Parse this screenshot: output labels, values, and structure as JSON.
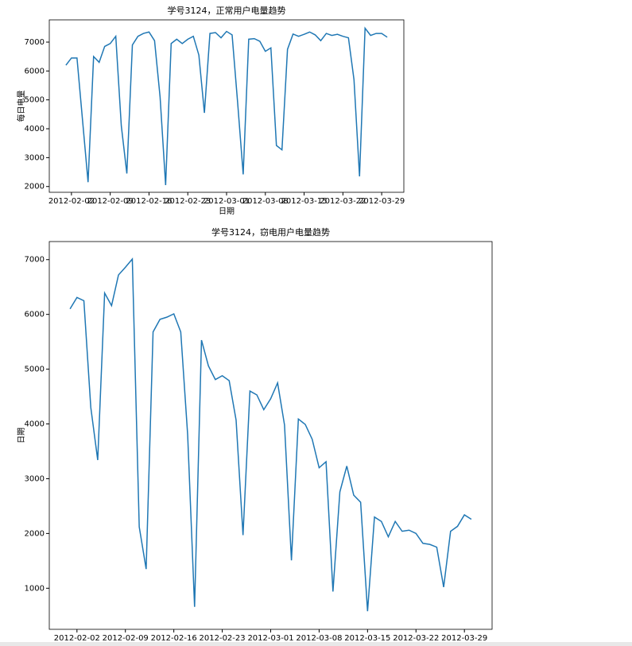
{
  "chart_data": [
    {
      "type": "line",
      "title": "学号3124，正常用户电量趋势",
      "x_label": "日期",
      "y_label": "每日电量",
      "x": [
        "2012-02-01",
        "2012-02-02",
        "2012-02-03",
        "2012-02-04",
        "2012-02-05",
        "2012-02-06",
        "2012-02-07",
        "2012-02-08",
        "2012-02-09",
        "2012-02-10",
        "2012-02-11",
        "2012-02-12",
        "2012-02-13",
        "2012-02-14",
        "2012-02-15",
        "2012-02-16",
        "2012-02-17",
        "2012-02-18",
        "2012-02-19",
        "2012-02-20",
        "2012-02-21",
        "2012-02-22",
        "2012-02-23",
        "2012-02-24",
        "2012-02-25",
        "2012-02-26",
        "2012-02-27",
        "2012-02-28",
        "2012-02-29",
        "2012-03-01",
        "2012-03-02",
        "2012-03-03",
        "2012-03-04",
        "2012-03-05",
        "2012-03-06",
        "2012-03-07",
        "2012-03-08",
        "2012-03-09",
        "2012-03-10",
        "2012-03-11",
        "2012-03-12",
        "2012-03-13",
        "2012-03-14",
        "2012-03-15",
        "2012-03-16",
        "2012-03-17",
        "2012-03-18",
        "2012-03-19",
        "2012-03-20",
        "2012-03-21",
        "2012-03-22",
        "2012-03-23",
        "2012-03-24",
        "2012-03-25",
        "2012-03-26",
        "2012-03-27",
        "2012-03-28",
        "2012-03-29",
        "2012-03-30"
      ],
      "series": [
        {
          "color": "#1f77b4",
          "values": [
            6200,
            6450,
            6450,
            4300,
            2150,
            6500,
            6300,
            6850,
            6950,
            7200,
            4100,
            2450,
            6900,
            7200,
            7300,
            7350,
            7050,
            5100,
            2050,
            6950,
            7100,
            6950,
            7100,
            7200,
            6550,
            4550,
            7300,
            7330,
            7150,
            7370,
            7250,
            4900,
            2420,
            7100,
            7120,
            7030,
            6680,
            6800,
            3420,
            3270,
            6750,
            7280,
            7200,
            7270,
            7350,
            7250,
            7050,
            7300,
            7230,
            7270,
            7200,
            7150,
            5700,
            2350,
            7480,
            7230,
            7300,
            7300,
            7170
          ]
        }
      ],
      "xlim": [
        "2012-01-29",
        "2012-04-02"
      ],
      "xticks": [
        "2012-02-02",
        "2012-02-09",
        "2012-02-16",
        "2012-02-23",
        "2012-03-01",
        "2012-03-08",
        "2012-03-15",
        "2012-03-22",
        "2012-03-29"
      ],
      "ylim": [
        1800,
        7770
      ],
      "yticks": [
        2000,
        3000,
        4000,
        5000,
        6000,
        7000
      ]
    },
    {
      "type": "line",
      "title": "学号3124，窃电用户电量趋势",
      "y_label": "日期",
      "x": [
        "2012-02-01",
        "2012-02-02",
        "2012-02-03",
        "2012-02-04",
        "2012-02-05",
        "2012-02-06",
        "2012-02-07",
        "2012-02-08",
        "2012-02-09",
        "2012-02-10",
        "2012-02-11",
        "2012-02-12",
        "2012-02-13",
        "2012-02-14",
        "2012-02-15",
        "2012-02-16",
        "2012-02-17",
        "2012-02-18",
        "2012-02-19",
        "2012-02-20",
        "2012-02-21",
        "2012-02-22",
        "2012-02-23",
        "2012-02-24",
        "2012-02-25",
        "2012-02-26",
        "2012-02-27",
        "2012-02-28",
        "2012-02-29",
        "2012-03-01",
        "2012-03-02",
        "2012-03-03",
        "2012-03-04",
        "2012-03-05",
        "2012-03-06",
        "2012-03-07",
        "2012-03-08",
        "2012-03-09",
        "2012-03-10",
        "2012-03-11",
        "2012-03-12",
        "2012-03-13",
        "2012-03-14",
        "2012-03-15",
        "2012-03-16",
        "2012-03-17",
        "2012-03-18",
        "2012-03-19",
        "2012-03-20",
        "2012-03-21",
        "2012-03-22",
        "2012-03-23",
        "2012-03-24",
        "2012-03-25",
        "2012-03-26",
        "2012-03-27",
        "2012-03-28",
        "2012-03-29",
        "2012-03-30"
      ],
      "series": [
        {
          "color": "#1f77b4",
          "values": [
            6100,
            6310,
            6250,
            4300,
            3340,
            6390,
            6160,
            6720,
            6860,
            7010,
            2120,
            1350,
            5680,
            5910,
            5950,
            6010,
            5680,
            3800,
            660,
            5530,
            5060,
            4810,
            4880,
            4790,
            4070,
            1970,
            4600,
            4530,
            4260,
            4460,
            4750,
            3980,
            1510,
            4090,
            3990,
            3720,
            3200,
            3310,
            940,
            2760,
            3230,
            2700,
            2570,
            580,
            2300,
            2220,
            1940,
            2220,
            2040,
            2060,
            2000,
            1820,
            1800,
            1750,
            1020,
            2040,
            2130,
            2340,
            2260
          ]
        }
      ],
      "xlim": [
        "2012-01-29",
        "2012-04-02"
      ],
      "xticks": [
        "2012-02-02",
        "2012-02-09",
        "2012-02-16",
        "2012-02-23",
        "2012-03-01",
        "2012-03-08",
        "2012-03-15",
        "2012-03-22",
        "2012-03-29"
      ],
      "ylim": [
        250,
        7330
      ],
      "yticks": [
        1000,
        2000,
        3000,
        4000,
        5000,
        6000,
        7000
      ]
    }
  ]
}
